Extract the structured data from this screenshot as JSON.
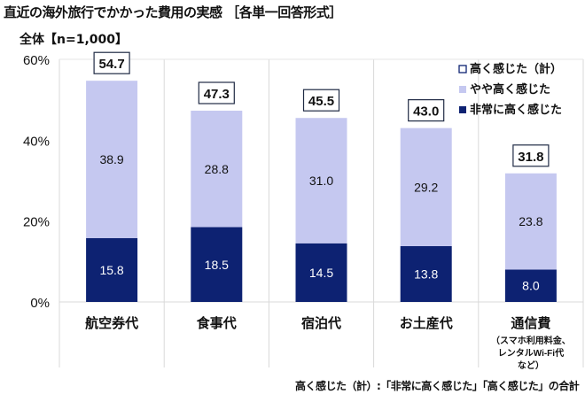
{
  "title": "直近の海外旅行でかかった費用の実感 ［各単一回答形式］",
  "subtitle": "全体【n=1,000】",
  "footnote": "高く感じた（計）:「非常に高く感じた」「高く感じた」の合計",
  "chart_data": {
    "type": "bar",
    "stacked": true,
    "categories": [
      "航空券代",
      "食事代",
      "宿泊代",
      "お土産代",
      "通信費"
    ],
    "category_notes": [
      "",
      "",
      "",
      "",
      "（スマホ利用料金、\nレンタルWi-Fi代\nなど）"
    ],
    "series": [
      {
        "name": "非常に高く感じた",
        "values": [
          15.8,
          18.5,
          14.5,
          13.8,
          8.0
        ],
        "color": "#0d2272"
      },
      {
        "name": "やや高く感じた",
        "values": [
          38.9,
          28.8,
          31.0,
          29.2,
          23.8
        ],
        "color": "#c5c8f0"
      }
    ],
    "totals": {
      "name": "高く感じた（計）",
      "values": [
        54.7,
        47.3,
        45.5,
        43.0,
        31.8
      ]
    },
    "ylim": [
      0,
      60
    ],
    "yticks": [
      "0%",
      "20%",
      "40%",
      "60%"
    ],
    "grid": false,
    "legend": "top-right"
  }
}
